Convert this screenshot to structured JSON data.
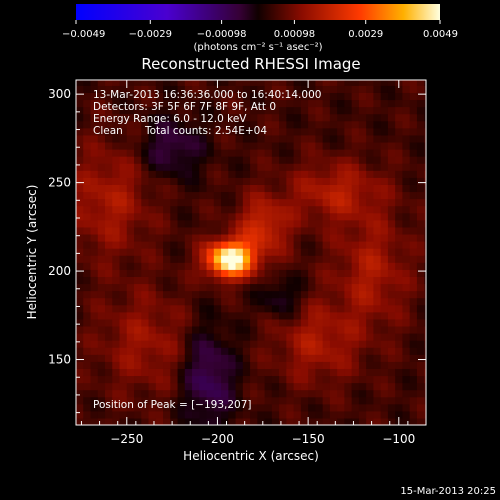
{
  "chart_data": {
    "type": "heatmap",
    "title": "Reconstructed RHESSI Image",
    "xlabel": "Heliocentric X (arcsec)",
    "ylabel": "Heliocentric Y (arcsec)",
    "xlim": [
      -278,
      -85
    ],
    "ylim": [
      113,
      308
    ],
    "x_ticks": [
      -250,
      -200,
      -150,
      -100
    ],
    "x_tick_labels": [
      "−250",
      "−200",
      "−150",
      "−100"
    ],
    "y_ticks": [
      150,
      200,
      250,
      300
    ],
    "y_tick_labels": [
      "150",
      "200",
      "250",
      "300"
    ],
    "colorbar": {
      "min": -0.0049,
      "max": 0.0049,
      "ticks": [
        -0.0049,
        -0.0029,
        -0.00098,
        0.00098,
        0.0029,
        0.0049
      ],
      "tick_labels": [
        "−0.0049",
        "−0.0029",
        "−0.00098",
        "0.00098",
        "0.0029",
        "0.0049"
      ],
      "units": "(photons cm⁻² s⁻¹ asec⁻²)"
    },
    "peak": [
      -193,
      207
    ],
    "sources": [
      {
        "x": -193,
        "y": 207,
        "peak": 0.0049,
        "sx": 9,
        "sy": 7
      },
      {
        "x": -175,
        "y": 225,
        "peak": 0.0016,
        "sx": 10,
        "sy": 12
      },
      {
        "x": -135,
        "y": 245,
        "peak": 0.0012,
        "sx": 18,
        "sy": 12
      },
      {
        "x": -115,
        "y": 200,
        "peak": 0.0011,
        "sx": 14,
        "sy": 22
      },
      {
        "x": -260,
        "y": 240,
        "peak": 0.0011,
        "sx": 16,
        "sy": 22
      },
      {
        "x": -145,
        "y": 160,
        "peak": 0.0011,
        "sx": 16,
        "sy": 16
      },
      {
        "x": -240,
        "y": 160,
        "peak": 0.0009,
        "sx": 18,
        "sy": 20
      },
      {
        "x": -205,
        "y": 140,
        "peak": -0.0014,
        "sx": 10,
        "sy": 20
      },
      {
        "x": -225,
        "y": 270,
        "peak": -0.0011,
        "sx": 12,
        "sy": 12
      },
      {
        "x": -165,
        "y": 185,
        "peak": -0.0009,
        "sx": 8,
        "sy": 8
      }
    ]
  },
  "annotations": {
    "time_range": "13-Mar-2013 16:36:36.000 to 16:40:14.000",
    "detectors": "Detectors: 3F 5F 6F 7F 8F 9F, Att 0",
    "energy": "Energy Range: 6.0 - 12.0 keV",
    "clean": "Clean",
    "counts": "Total counts: 2.54E+04",
    "peak_position": "Position of Peak = [−193,207]"
  },
  "footer_date": "15-Mar-2013 20:25"
}
